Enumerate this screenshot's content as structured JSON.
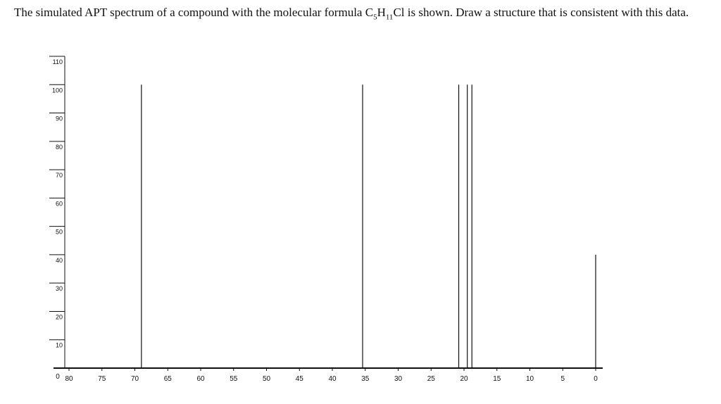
{
  "question": {
    "part1": "The simulated APT spectrum of a compound with the molecular formula C",
    "sub1": "5",
    "part2": "H",
    "sub2": "11",
    "part3": "Cl is shown. Draw a structure that is consistent with this data."
  },
  "chart_data": {
    "type": "bar",
    "x_ticks": [
      80,
      75,
      70,
      65,
      60,
      55,
      50,
      45,
      40,
      35,
      30,
      25,
      20,
      15,
      10,
      5,
      0
    ],
    "y_ticks": [
      0,
      10,
      20,
      30,
      40,
      50,
      60,
      70,
      80,
      90,
      100,
      110
    ],
    "xlim": [
      80,
      0
    ],
    "ylim": [
      0,
      110
    ],
    "peaks": [
      {
        "x": 69.0,
        "y": 100
      },
      {
        "x": 35.4,
        "y": 100
      },
      {
        "x": 20.8,
        "y": 100
      },
      {
        "x": 19.5,
        "y": 100
      },
      {
        "x": 18.8,
        "y": 100
      },
      {
        "x": 0.0,
        "y": 40
      }
    ]
  }
}
